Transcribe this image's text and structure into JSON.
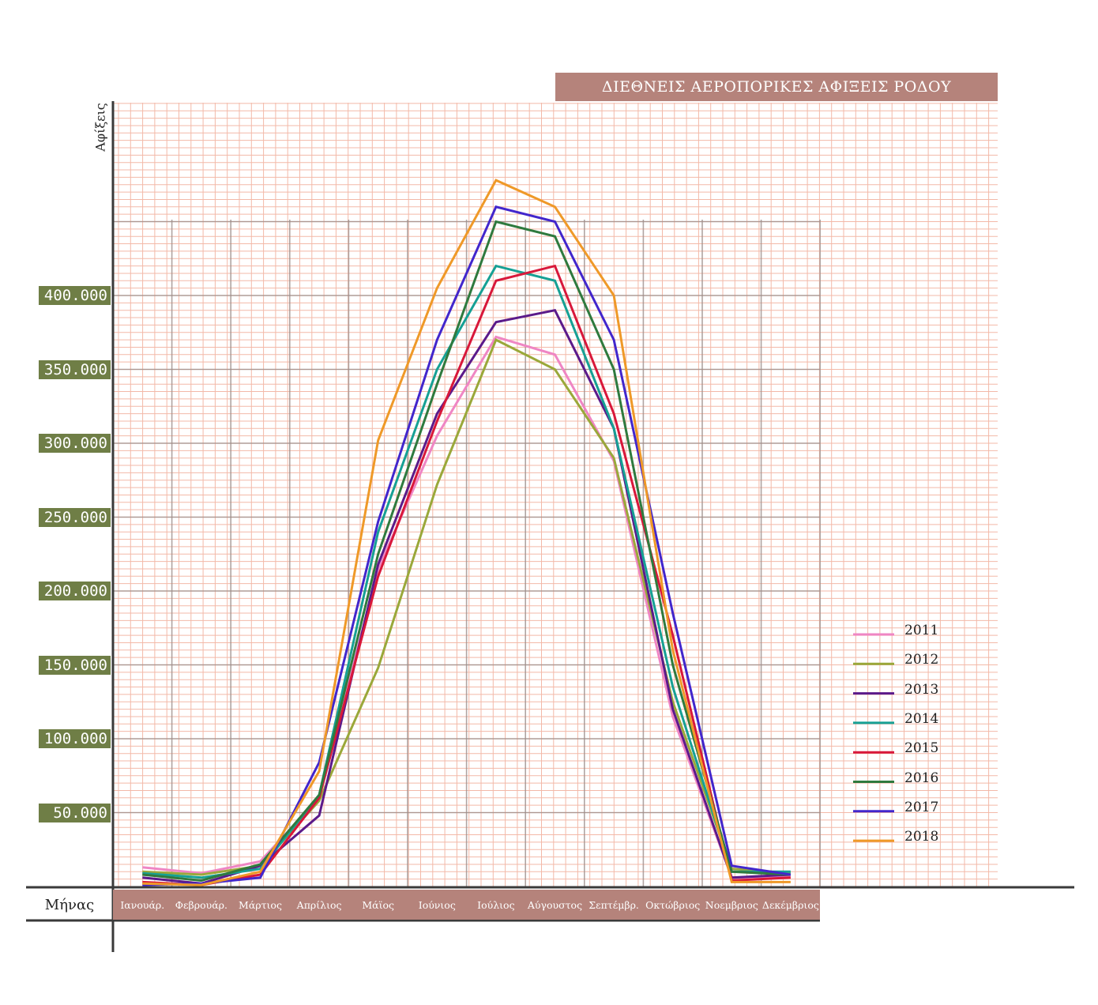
{
  "chart_data": {
    "type": "line",
    "title": "ΔΙΕΘΝΕΙΣ ΑΕΡΟΠΟΡΙΚΕΣ ΑΦΙΞΕΙΣ ΡΟΔΟΥ",
    "xlabel": "Μήνας",
    "ylabel": "Αφίξεις",
    "categories": [
      "Ιανουάρ.",
      "Φεβρουάρ.",
      "Μάρτιος",
      "Απρίλιος",
      "Μάϊος",
      "Ιούνιος",
      "Ιούλιος",
      "Αύγουστος",
      "Σεπτέμβρ.",
      "Οκτώβριος",
      "Νοεμβριος",
      "Δεκέμβριος"
    ],
    "yticks": [
      "50.000",
      "100.000",
      "150.000",
      "200.000",
      "250.000",
      "300.000",
      "350.000",
      "400.000"
    ],
    "ytick_values": [
      50000,
      100000,
      150000,
      200000,
      250000,
      300000,
      350000,
      400000
    ],
    "ylim": [
      0,
      530000
    ],
    "grid": true,
    "legend_position": "right",
    "series": [
      {
        "name": "2011",
        "color": "#ef86c4",
        "values": [
          13000,
          9000,
          17000,
          60000,
          215000,
          305000,
          372000,
          360000,
          288000,
          115000,
          6000,
          7000
        ]
      },
      {
        "name": "2012",
        "color": "#9aa83a",
        "values": [
          10000,
          8000,
          14000,
          58000,
          148000,
          272000,
          370000,
          350000,
          290000,
          125000,
          12000,
          9000
        ]
      },
      {
        "name": "2013",
        "color": "#5b1a8a",
        "values": [
          6000,
          2000,
          14000,
          48000,
          218000,
          320000,
          382000,
          390000,
          310000,
          120000,
          6000,
          8000
        ]
      },
      {
        "name": "2014",
        "color": "#16a094",
        "values": [
          9000,
          6000,
          12000,
          62000,
          240000,
          350000,
          420000,
          410000,
          310000,
          135000,
          10000,
          10000
        ]
      },
      {
        "name": "2015",
        "color": "#d8183a",
        "values": [
          3000,
          1000,
          8000,
          60000,
          210000,
          315000,
          410000,
          420000,
          320000,
          170000,
          4000,
          6000
        ]
      },
      {
        "name": "2016",
        "color": "#2f7a3e",
        "values": [
          8000,
          4000,
          15000,
          62000,
          225000,
          340000,
          450000,
          440000,
          350000,
          150000,
          10000,
          8000
        ]
      },
      {
        "name": "2017",
        "color": "#4226cc",
        "values": [
          1000,
          2000,
          6000,
          84000,
          247000,
          370000,
          460000,
          450000,
          370000,
          185000,
          14000,
          8000
        ]
      },
      {
        "name": "2018",
        "color": "#ef9928",
        "values": [
          2000,
          1000,
          10000,
          78000,
          302000,
          405000,
          478000,
          460000,
          400000,
          160000,
          3000,
          3000
        ]
      }
    ]
  }
}
